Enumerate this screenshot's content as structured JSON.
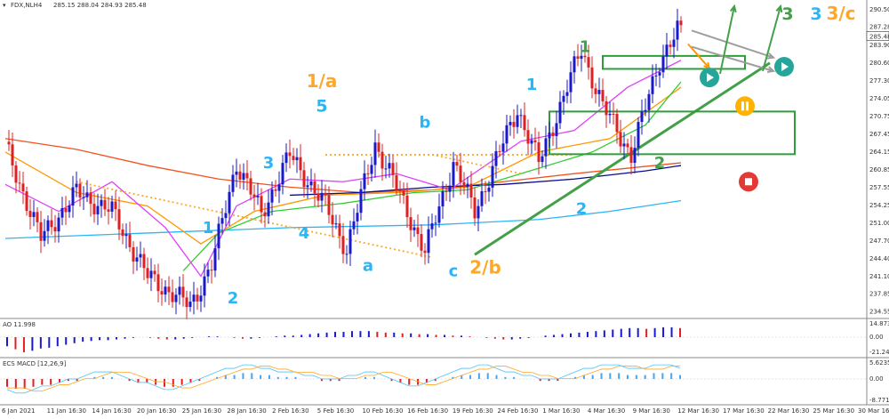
{
  "header": {
    "symbol": "FDX,NLH4",
    "ohlc": "285.15 288.04 284.93 285.48"
  },
  "chart_data": {
    "type": "candlestick",
    "price_axis": {
      "ticks": [
        290.5,
        287.28,
        283.9,
        280.6,
        277.3,
        274.05,
        270.75,
        267.45,
        264.15,
        260.85,
        257.55,
        254.25,
        251.0,
        247.7,
        244.4,
        241.1,
        237.85,
        234.55
      ],
      "current_price": 285.48,
      "ylim": [
        233.5,
        291.5
      ]
    },
    "time_axis": {
      "labels": [
        "6 Jan 2021",
        "11 Jan 16:30",
        "14 Jan 16:30",
        "20 Jan 16:30",
        "25 Jan 16:30",
        "28 Jan 16:30",
        "2 Feb 16:30",
        "5 Feb 16:30",
        "10 Feb 16:30",
        "16 Feb 16:30",
        "19 Feb 16:30",
        "24 Feb 16:30",
        "1 Mar 16:30",
        "4 Mar 16:30",
        "9 Mar 16:30",
        "12 Mar 16:30",
        "17 Mar 16:30",
        "22 Mar 16:30",
        "25 Mar 16:30",
        "30 Mar 16:30"
      ]
    },
    "key_points": [
      {
        "bar": 0,
        "price": 265.0
      },
      {
        "bar": 10,
        "price": 248.0
      },
      {
        "bar": 20,
        "price": 256.5
      },
      {
        "bar": 30,
        "price": 253.0
      },
      {
        "bar": 40,
        "price": 241.0
      },
      {
        "bar": 52,
        "price": 235.5
      },
      {
        "bar": 58,
        "price": 243.0
      },
      {
        "bar": 65,
        "price": 262.0
      },
      {
        "bar": 72,
        "price": 252.5
      },
      {
        "bar": 80,
        "price": 263.5
      },
      {
        "bar": 90,
        "price": 254.0
      },
      {
        "bar": 96,
        "price": 246.0
      },
      {
        "bar": 104,
        "price": 265.5
      },
      {
        "bar": 110,
        "price": 257.5
      },
      {
        "bar": 118,
        "price": 245.5
      },
      {
        "bar": 126,
        "price": 262.0
      },
      {
        "bar": 132,
        "price": 253.0
      },
      {
        "bar": 144,
        "price": 272.0
      },
      {
        "bar": 150,
        "price": 262.0
      },
      {
        "bar": 162,
        "price": 283.0
      },
      {
        "bar": 168,
        "price": 272.5
      },
      {
        "bar": 176,
        "price": 263.5
      },
      {
        "bar": 184,
        "price": 281.0
      },
      {
        "bar": 190,
        "price": 287.5
      }
    ],
    "moving_averages": [
      {
        "color": "#f4511e",
        "points": [
          [
            0,
            266.5
          ],
          [
            20,
            264.5
          ],
          [
            40,
            261.5
          ],
          [
            60,
            259
          ],
          [
            80,
            257.5
          ],
          [
            100,
            256.5
          ],
          [
            120,
            257
          ],
          [
            140,
            258.5
          ],
          [
            160,
            260
          ],
          [
            190,
            262
          ]
        ]
      },
      {
        "color": "#0a0a8c",
        "points": [
          [
            80,
            256
          ],
          [
            100,
            256.5
          ],
          [
            120,
            257.5
          ],
          [
            140,
            258
          ],
          [
            160,
            259
          ],
          [
            180,
            260.5
          ],
          [
            190,
            261.5
          ]
        ]
      },
      {
        "color": "#29b6f6",
        "points": [
          [
            0,
            248
          ],
          [
            40,
            249
          ],
          [
            80,
            250
          ],
          [
            120,
            250.5
          ],
          [
            150,
            251.5
          ],
          [
            170,
            253
          ],
          [
            190,
            255
          ]
        ]
      },
      {
        "color": "#ff9800",
        "points": [
          [
            0,
            264
          ],
          [
            20,
            256.5
          ],
          [
            40,
            254
          ],
          [
            55,
            247
          ],
          [
            70,
            253
          ],
          [
            90,
            256
          ],
          [
            110,
            256.5
          ],
          [
            130,
            257.5
          ],
          [
            150,
            264
          ],
          [
            170,
            266.5
          ],
          [
            190,
            276
          ]
        ]
      },
      {
        "color": "#32cd32",
        "points": [
          [
            50,
            242
          ],
          [
            60,
            249
          ],
          [
            75,
            253
          ],
          [
            95,
            254.5
          ],
          [
            115,
            256.5
          ],
          [
            130,
            257
          ],
          [
            150,
            261
          ],
          [
            165,
            264
          ],
          [
            180,
            269
          ],
          [
            190,
            277
          ]
        ]
      },
      {
        "color": "#e040fb",
        "points": [
          [
            0,
            258
          ],
          [
            15,
            253
          ],
          [
            30,
            258.5
          ],
          [
            45,
            250
          ],
          [
            55,
            241
          ],
          [
            65,
            254
          ],
          [
            80,
            259
          ],
          [
            95,
            258.5
          ],
          [
            110,
            260
          ],
          [
            125,
            257
          ],
          [
            145,
            266
          ],
          [
            160,
            268
          ],
          [
            175,
            276
          ],
          [
            190,
            281
          ]
        ]
      }
    ],
    "trend_lines": [
      {
        "name": "dotted-resistance-1",
        "color": "#ffa726",
        "style": "dotted",
        "from": [
          20,
          258.5
        ],
        "to": [
          120,
          244.5
        ]
      },
      {
        "name": "dotted-resistance-2",
        "color": "#ffa726",
        "style": "dotted",
        "from": [
          90,
          263.5
        ],
        "to": [
          160,
          263.5
        ]
      },
      {
        "name": "dotted-resistance-3",
        "color": "#ffa726",
        "style": "dotted",
        "from": [
          120,
          263.5
        ],
        "to": [
          145,
          260
        ]
      },
      {
        "name": "green-trendline",
        "color": "#43a047",
        "style": "solid",
        "from": [
          132,
          245
        ],
        "to": [
          215,
          280.5
        ]
      }
    ],
    "boxes": [
      {
        "name": "upper-box",
        "from": [
          168,
          281.8
        ],
        "to": [
          208,
          279.4
        ]
      },
      {
        "name": "middle-box",
        "from": [
          153,
          271.5
        ],
        "to": [
          222,
          263.6
        ]
      }
    ],
    "arrows": [
      {
        "color": "#9e9e9e",
        "from": [
          193,
          286.5
        ],
        "to": [
          216,
          281.5
        ]
      },
      {
        "color": "#9e9e9e",
        "from": [
          193,
          283.5
        ],
        "to": [
          216,
          279
        ]
      },
      {
        "color": "#43a047",
        "from": [
          201,
          278.5
        ],
        "to": [
          205,
          291
        ]
      },
      {
        "color": "#43a047",
        "from": [
          213,
          279
        ],
        "to": [
          218,
          291
        ]
      },
      {
        "color": "#ff9800",
        "from": [
          192,
          284
        ],
        "to": [
          198,
          279.5
        ]
      }
    ],
    "wave_labels": [
      {
        "text": "1/a",
        "color": "#ffa726",
        "bar": 89,
        "price": 276.0,
        "size": 20
      },
      {
        "text": "5",
        "color": "#29b6f6",
        "bar": 89,
        "price": 271.5,
        "size": 19
      },
      {
        "text": "3",
        "color": "#29b6f6",
        "bar": 74,
        "price": 261.0,
        "size": 18
      },
      {
        "text": "4",
        "color": "#29b6f6",
        "bar": 84,
        "price": 248.0,
        "size": 18
      },
      {
        "text": "1",
        "color": "#29b6f6",
        "bar": 57,
        "price": 249.0,
        "size": 18
      },
      {
        "text": "2",
        "color": "#29b6f6",
        "bar": 64,
        "price": 236.0,
        "size": 18
      },
      {
        "text": "a",
        "color": "#29b6f6",
        "bar": 102,
        "price": 242.0,
        "size": 18
      },
      {
        "text": "b",
        "color": "#29b6f6",
        "bar": 118,
        "price": 268.5,
        "size": 18
      },
      {
        "text": "c",
        "color": "#29b6f6",
        "bar": 126,
        "price": 241.0,
        "size": 18
      },
      {
        "text": "2/b",
        "color": "#ffa726",
        "bar": 135,
        "price": 241.5,
        "size": 20
      },
      {
        "text": "1",
        "color": "#29b6f6",
        "bar": 148,
        "price": 275.5,
        "size": 18
      },
      {
        "text": "2",
        "color": "#29b6f6",
        "bar": 162,
        "price": 252.5,
        "size": 18
      },
      {
        "text": "1",
        "color": "#43a047",
        "bar": 163,
        "price": 282.5,
        "size": 18
      },
      {
        "text": "2",
        "color": "#43a047",
        "bar": 184,
        "price": 261.0,
        "size": 18
      },
      {
        "text": "3",
        "color": "#43a047",
        "bar": 220,
        "price": 288.5,
        "size": 19
      },
      {
        "text": "3",
        "color": "#29b6f6",
        "bar": 228,
        "price": 288.5,
        "size": 19
      },
      {
        "text": "3/c",
        "color": "#ffa726",
        "bar": 235,
        "price": 288.5,
        "size": 20
      }
    ],
    "signal_icons": [
      {
        "name": "play",
        "color": "#26a69a",
        "bar": 198,
        "price": 277.8
      },
      {
        "name": "play",
        "color": "#26a69a",
        "bar": 219,
        "price": 279.8
      },
      {
        "name": "pause",
        "color": "#ffb300",
        "bar": 208,
        "price": 272.5
      },
      {
        "name": "stop",
        "color": "#e53935",
        "bar": 209,
        "price": 258.5
      }
    ],
    "ao_panel": {
      "label": "AO 11.998",
      "scale_labels": [
        "14.873",
        "0.00",
        "-21.246"
      ],
      "values": [
        -12,
        -16,
        -20,
        -18,
        -15,
        -14,
        -12,
        -10,
        -8,
        -6,
        -5,
        -4,
        -4,
        -3,
        -2,
        -1,
        0,
        -1,
        -2,
        -3,
        -3,
        -2,
        -1,
        0,
        1,
        1,
        0,
        -1,
        -2,
        -2,
        -1,
        0,
        1,
        2,
        2,
        3,
        4,
        5,
        6,
        7,
        7,
        8,
        8,
        8,
        7,
        6,
        6,
        5,
        5,
        4,
        4,
        3,
        3,
        2,
        2,
        1,
        0,
        -1,
        -2,
        -3,
        -3,
        -2,
        -1,
        0,
        2,
        3,
        4,
        5,
        6,
        7,
        8,
        9,
        10,
        11,
        12,
        12,
        11,
        12,
        13,
        13,
        12
      ]
    },
    "macd_panel": {
      "label": "ECS MACD [12,26,9]",
      "scale_labels": [
        "5.6235",
        "0.00",
        "-8.7718"
      ],
      "values": [
        -4,
        -5,
        -5,
        -4,
        -3,
        -3,
        -2,
        -1,
        -1,
        0,
        1,
        1,
        1,
        0,
        -1,
        -2,
        -2,
        -3,
        -4,
        -4,
        -3,
        -2,
        -1,
        0,
        1,
        2,
        2,
        3,
        3,
        2,
        2,
        1,
        1,
        1,
        0,
        0,
        -1,
        -1,
        -1,
        0,
        0,
        1,
        1,
        0,
        -1,
        -2,
        -3,
        -3,
        -2,
        -1,
        0,
        1,
        2,
        2,
        3,
        3,
        2,
        1,
        1,
        0,
        0,
        -1,
        -1,
        -1,
        0,
        1,
        2,
        2,
        3,
        3,
        3,
        2,
        2,
        2,
        3,
        3,
        3,
        2
      ]
    }
  }
}
